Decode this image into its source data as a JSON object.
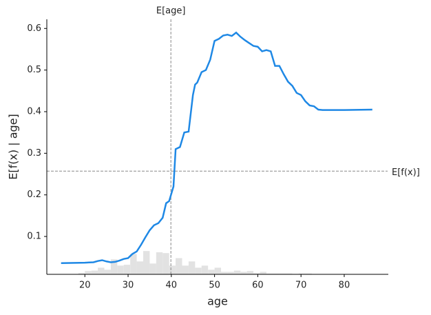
{
  "chart_data": {
    "type": "line",
    "xlabel": "age",
    "ylabel": "E[f(x) | age]",
    "xlim": [
      11.2,
      90.2
    ],
    "ylim": [
      0.009,
      0.622
    ],
    "xticks": [
      20,
      30,
      40,
      50,
      60,
      70,
      80
    ],
    "yticks": [
      0.1,
      0.2,
      0.3,
      0.4,
      0.5,
      0.6
    ],
    "series": [
      {
        "color": "#1e88e5",
        "x": [
          14.5,
          20,
          22,
          23,
          24,
          25,
          26,
          27,
          28,
          29,
          30,
          31,
          32,
          33,
          34,
          35,
          36,
          37,
          38,
          38.8,
          39.5,
          40.5,
          41,
          42,
          43,
          44,
          45,
          45.5,
          46,
          47,
          48,
          49,
          50,
          51,
          52,
          53,
          54,
          55,
          56,
          57,
          58,
          59,
          60,
          61,
          62,
          63,
          64,
          65,
          66,
          67,
          68,
          69,
          70,
          71,
          72,
          73,
          74,
          75,
          80,
          86.5
        ],
        "values": [
          0.036,
          0.037,
          0.038,
          0.041,
          0.043,
          0.04,
          0.038,
          0.039,
          0.042,
          0.046,
          0.048,
          0.058,
          0.064,
          0.08,
          0.098,
          0.115,
          0.127,
          0.132,
          0.145,
          0.18,
          0.185,
          0.22,
          0.31,
          0.315,
          0.35,
          0.352,
          0.44,
          0.465,
          0.47,
          0.495,
          0.5,
          0.525,
          0.57,
          0.575,
          0.583,
          0.585,
          0.582,
          0.59,
          0.58,
          0.572,
          0.565,
          0.558,
          0.556,
          0.545,
          0.548,
          0.545,
          0.51,
          0.51,
          0.49,
          0.472,
          0.462,
          0.445,
          0.44,
          0.425,
          0.415,
          0.413,
          0.405,
          0.404,
          0.404,
          0.405
        ]
      }
    ],
    "histogram": {
      "color": "#e2e2e2",
      "bins": [
        18.5,
        20,
        21.5,
        23,
        24.5,
        26,
        27.5,
        29,
        30.5,
        32,
        33.5,
        35,
        36.5,
        38,
        39.5,
        41,
        42.5,
        44,
        45.5,
        47,
        48.5,
        50,
        51.5,
        53,
        54.5,
        56,
        57.5,
        59,
        60.5,
        62,
        63.5,
        65,
        66.5,
        68,
        69.5,
        71,
        72.5
      ],
      "values": [
        0.012,
        0.017,
        0.018,
        0.025,
        0.02,
        0.045,
        0.03,
        0.032,
        0.058,
        0.04,
        0.065,
        0.035,
        0.062,
        0.06,
        0.03,
        0.048,
        0.03,
        0.04,
        0.025,
        0.03,
        0.02,
        0.025,
        0.015,
        0.015,
        0.018,
        0.015,
        0.017,
        0.012,
        0.015,
        0.011,
        0.011,
        0.011,
        0.011,
        0.01,
        0.011,
        0.011
      ]
    },
    "reference_lines": [
      {
        "axis": "x",
        "value": 39.9,
        "label": "E[age]"
      },
      {
        "axis": "y",
        "value": 0.257,
        "label": "E[f(x)]"
      }
    ]
  }
}
